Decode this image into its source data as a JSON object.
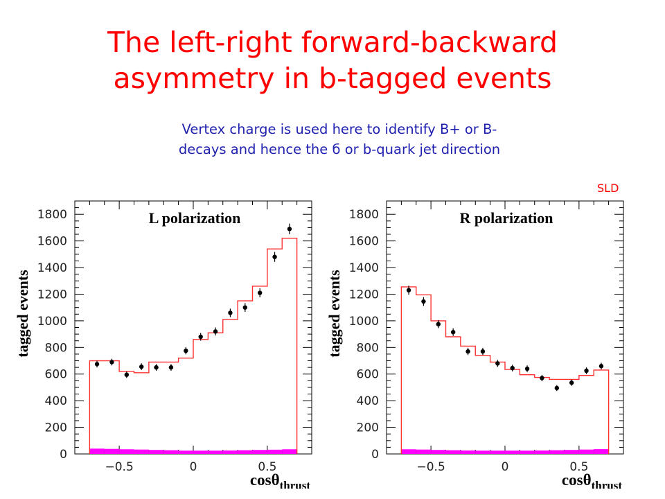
{
  "slide": {
    "title": [
      "The left-right forward-backward",
      "asymmetry in b-tagged events"
    ],
    "subtitle": [
      "Vertex charge is used here to identify B+ or B-",
      "decays and hence the б or b-quark jet direction"
    ],
    "experiment_label": "SLD"
  },
  "colors": {
    "title": "#ff0000",
    "subtitle": "#1f1fb0",
    "mc_histogram": "#ff3030",
    "background": "#ff00ff",
    "data_points": "#000000"
  },
  "chart_data": [
    {
      "type": "scatter",
      "panel_label": "L polarization",
      "ylabel": "tagged events",
      "xlabel": "cosθ",
      "xlabel_subscript": "thrust",
      "xlim": [
        -0.8,
        0.8
      ],
      "ylim": [
        0,
        1900
      ],
      "x_ticks": [
        -0.5,
        0,
        0.5
      ],
      "x_tick_labels": [
        "−0.5",
        "0",
        "0.5"
      ],
      "y_ticks": [
        0,
        200,
        400,
        600,
        800,
        1000,
        1200,
        1400,
        1600,
        1800
      ],
      "y_tick_labels": [
        "0",
        "200",
        "400",
        "600",
        "800",
        "1000",
        "1200",
        "1400",
        "1600",
        "1800"
      ],
      "bin_edges": [
        -0.7,
        -0.6,
        -0.5,
        -0.4,
        -0.3,
        -0.2,
        -0.1,
        0,
        0.1,
        0.2,
        0.3,
        0.4,
        0.5,
        0.6,
        0.7
      ],
      "series": [
        {
          "name": "data",
          "x": [
            -0.65,
            -0.55,
            -0.45,
            -0.35,
            -0.25,
            -0.15,
            -0.05,
            0.05,
            0.15,
            0.25,
            0.35,
            0.45,
            0.55,
            0.65
          ],
          "values": [
            675,
            690,
            595,
            655,
            650,
            650,
            775,
            880,
            920,
            1060,
            1100,
            1210,
            1480,
            1690
          ],
          "errors": [
            25,
            25,
            24,
            25,
            25,
            25,
            27,
            29,
            30,
            32,
            33,
            34,
            37,
            40
          ]
        },
        {
          "name": "MC",
          "values": [
            700,
            700,
            620,
            610,
            690,
            690,
            720,
            860,
            910,
            1010,
            1150,
            1260,
            1540,
            1620
          ]
        },
        {
          "name": "background",
          "values": [
            40,
            38,
            35,
            33,
            30,
            28,
            25,
            25,
            25,
            26,
            28,
            30,
            32,
            35
          ]
        }
      ]
    },
    {
      "type": "scatter",
      "panel_label": "R polarization",
      "ylabel": "tagged events",
      "xlabel": "cosθ",
      "xlabel_subscript": "thrust",
      "xlim": [
        -0.8,
        0.8
      ],
      "ylim": [
        0,
        1900
      ],
      "x_ticks": [
        -0.5,
        0,
        0.5
      ],
      "x_tick_labels": [
        "−0.5",
        "0",
        "0.5"
      ],
      "y_ticks": [
        0,
        200,
        400,
        600,
        800,
        1000,
        1200,
        1400,
        1600,
        1800
      ],
      "y_tick_labels": [
        "0",
        "200",
        "400",
        "600",
        "800",
        "1000",
        "1200",
        "1400",
        "1600",
        "1800"
      ],
      "bin_edges": [
        -0.7,
        -0.6,
        -0.5,
        -0.4,
        -0.3,
        -0.2,
        -0.1,
        0,
        0.1,
        0.2,
        0.3,
        0.4,
        0.5,
        0.6,
        0.7
      ],
      "series": [
        {
          "name": "data",
          "x": [
            -0.65,
            -0.55,
            -0.45,
            -0.35,
            -0.25,
            -0.15,
            -0.05,
            0.05,
            0.15,
            0.25,
            0.35,
            0.45,
            0.55,
            0.65
          ],
          "values": [
            1230,
            1145,
            975,
            915,
            770,
            770,
            680,
            645,
            640,
            570,
            495,
            535,
            625,
            660
          ],
          "errors": [
            34,
            33,
            30,
            29,
            27,
            27,
            26,
            25,
            25,
            24,
            22,
            23,
            25,
            25
          ]
        },
        {
          "name": "MC",
          "values": [
            1255,
            1195,
            1000,
            880,
            810,
            740,
            690,
            635,
            595,
            575,
            560,
            560,
            590,
            630
          ]
        },
        {
          "name": "background",
          "values": [
            35,
            33,
            30,
            28,
            26,
            25,
            25,
            25,
            25,
            26,
            28,
            30,
            33,
            36
          ]
        }
      ]
    }
  ]
}
